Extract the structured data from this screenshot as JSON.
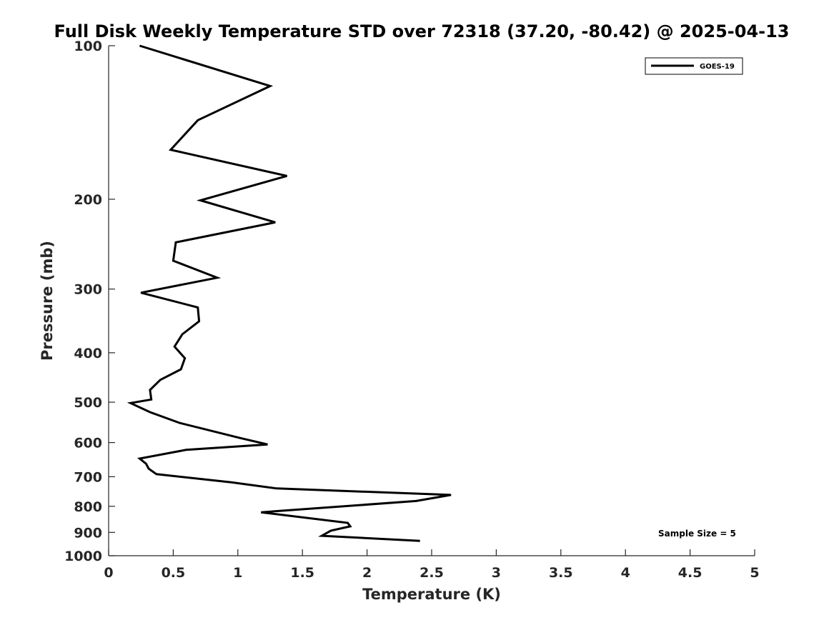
{
  "chart_data": {
    "type": "line",
    "title": "Full Disk Weekly Temperature STD over 72318 (37.20, -80.42) @ 2025-04-13",
    "xlabel": "Temperature (K)",
    "ylabel": "Pressure (mb)",
    "xlim": [
      0,
      5
    ],
    "ylim": [
      100,
      1000
    ],
    "y_scale": "log",
    "y_reversed": true,
    "x_ticks": [
      0,
      0.5,
      1,
      1.5,
      2,
      2.5,
      3,
      3.5,
      4,
      4.5,
      5
    ],
    "x_tick_labels": [
      "0",
      "0.5",
      "1",
      "1.5",
      "2",
      "2.5",
      "3",
      "3.5",
      "4",
      "4.5",
      "5"
    ],
    "y_ticks": [
      100,
      200,
      300,
      400,
      500,
      600,
      700,
      800,
      900,
      1000
    ],
    "y_tick_labels": [
      "100",
      "200",
      "300",
      "400",
      "500",
      "600",
      "700",
      "800",
      "900",
      "1000"
    ],
    "legend_position": "top-right",
    "grid": false,
    "annotation": "Sample Size = 5",
    "series": [
      {
        "name": "GOES-19",
        "color": "#000000",
        "points": [
          {
            "t": 0.24,
            "p": 100
          },
          {
            "t": 1.25,
            "p": 120
          },
          {
            "t": 0.69,
            "p": 140
          },
          {
            "t": 0.48,
            "p": 160
          },
          {
            "t": 1.38,
            "p": 180
          },
          {
            "t": 0.71,
            "p": 201
          },
          {
            "t": 1.29,
            "p": 222
          },
          {
            "t": 0.52,
            "p": 243
          },
          {
            "t": 0.5,
            "p": 264
          },
          {
            "t": 0.84,
            "p": 285
          },
          {
            "t": 0.25,
            "p": 305
          },
          {
            "t": 0.69,
            "p": 326
          },
          {
            "t": 0.7,
            "p": 347
          },
          {
            "t": 0.57,
            "p": 368
          },
          {
            "t": 0.51,
            "p": 389
          },
          {
            "t": 0.59,
            "p": 410
          },
          {
            "t": 0.56,
            "p": 431
          },
          {
            "t": 0.4,
            "p": 452
          },
          {
            "t": 0.32,
            "p": 473
          },
          {
            "t": 0.33,
            "p": 494
          },
          {
            "t": 0.17,
            "p": 502
          },
          {
            "t": 0.32,
            "p": 523
          },
          {
            "t": 0.55,
            "p": 549
          },
          {
            "t": 1.02,
            "p": 588
          },
          {
            "t": 1.23,
            "p": 605
          },
          {
            "t": 0.6,
            "p": 620
          },
          {
            "t": 0.24,
            "p": 645
          },
          {
            "t": 0.29,
            "p": 660
          },
          {
            "t": 0.31,
            "p": 675
          },
          {
            "t": 0.37,
            "p": 692
          },
          {
            "t": 0.95,
            "p": 718
          },
          {
            "t": 1.3,
            "p": 738
          },
          {
            "t": 2.65,
            "p": 760
          },
          {
            "t": 2.38,
            "p": 781
          },
          {
            "t": 1.18,
            "p": 822
          },
          {
            "t": 1.85,
            "p": 862
          },
          {
            "t": 1.87,
            "p": 876
          },
          {
            "t": 1.72,
            "p": 893
          },
          {
            "t": 1.65,
            "p": 914
          },
          {
            "t": 2.41,
            "p": 935
          }
        ]
      }
    ]
  }
}
